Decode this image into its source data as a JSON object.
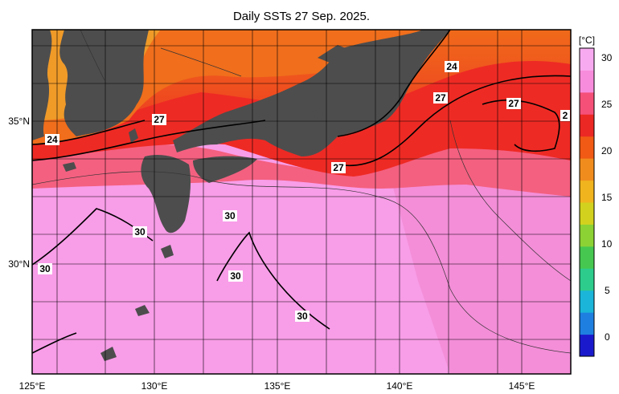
{
  "title": "Daily SSTs 27 Sep. 2025.",
  "map": {
    "x_ticks": [
      "125°E",
      "130°E",
      "135°E",
      "140°E",
      "145°E"
    ],
    "y_ticks": [
      "35°N",
      "30°N"
    ],
    "contour_labels": [
      "24",
      "24",
      "27",
      "27",
      "27",
      "27",
      "2",
      "30",
      "30",
      "30",
      "30",
      "30"
    ],
    "land_color": "#4d4d4d"
  },
  "colorbar": {
    "unit": "[°C]",
    "ticks": [
      "30",
      "25",
      "20",
      "15",
      "10",
      "5",
      "0"
    ],
    "range": [
      -2,
      31
    ],
    "colors": [
      "#1a1acc",
      "#1f7fe0",
      "#1ab5d8",
      "#2ecc8c",
      "#46c850",
      "#8cd234",
      "#d2d21e",
      "#f0b41e",
      "#f08c1e",
      "#f05a14",
      "#eb2823",
      "#f55078",
      "#f88cdc",
      "#f8aaf0"
    ]
  }
}
